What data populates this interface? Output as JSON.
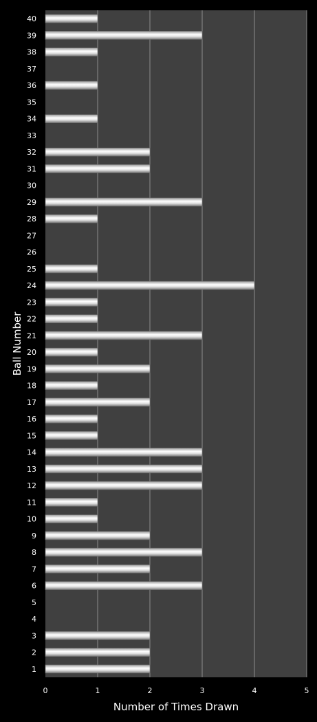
{
  "chart_data": {
    "type": "bar",
    "orientation": "horizontal",
    "title": "",
    "xlabel": "Number of Times Drawn",
    "ylabel": "Ball Number",
    "xlim": [
      0,
      5
    ],
    "xticks": [
      0,
      1,
      2,
      3,
      4,
      5
    ],
    "grid": "vertical",
    "legend": "none",
    "categories": [
      "1",
      "2",
      "3",
      "4",
      "5",
      "6",
      "7",
      "8",
      "9",
      "10",
      "11",
      "12",
      "13",
      "14",
      "15",
      "16",
      "17",
      "18",
      "19",
      "20",
      "21",
      "22",
      "23",
      "24",
      "25",
      "26",
      "27",
      "28",
      "29",
      "30",
      "31",
      "32",
      "33",
      "34",
      "35",
      "36",
      "37",
      "38",
      "39",
      "40"
    ],
    "values": [
      2,
      2,
      2,
      0,
      0,
      3,
      2,
      3,
      2,
      1,
      1,
      3,
      3,
      3,
      1,
      1,
      2,
      1,
      2,
      1,
      3,
      1,
      1,
      4,
      1,
      0,
      0,
      1,
      3,
      0,
      2,
      2,
      0,
      1,
      0,
      1,
      0,
      1,
      3,
      1
    ],
    "colors": {
      "background": "#000000",
      "plot_area": "#404040",
      "gridline": "#8c8c8c",
      "bar_light": "#ffffff",
      "bar_dark": "#8a8a8a",
      "text": "#ffffff"
    }
  }
}
